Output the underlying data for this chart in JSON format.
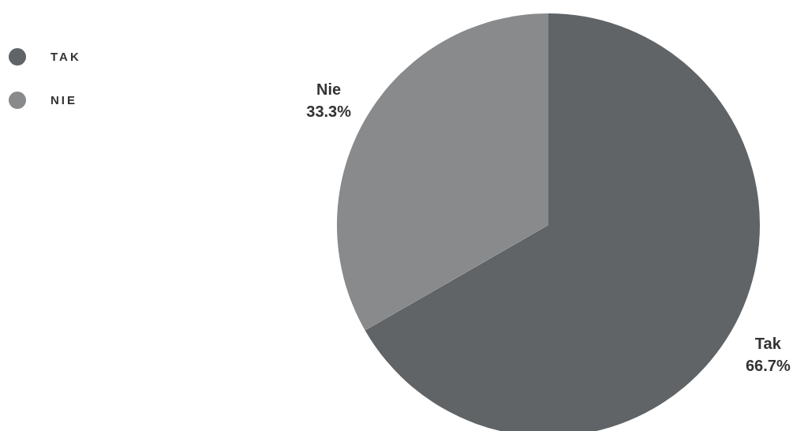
{
  "chart_data": {
    "type": "pie",
    "categories": [
      "TAK",
      "NIE"
    ],
    "values": [
      66.7,
      33.3
    ],
    "colors": [
      "#606467",
      "#888a8c"
    ],
    "value_labels": [
      "66.7%",
      "33.3%"
    ],
    "annotations": [
      "Tak",
      "Nie"
    ],
    "legend": "top left"
  }
}
